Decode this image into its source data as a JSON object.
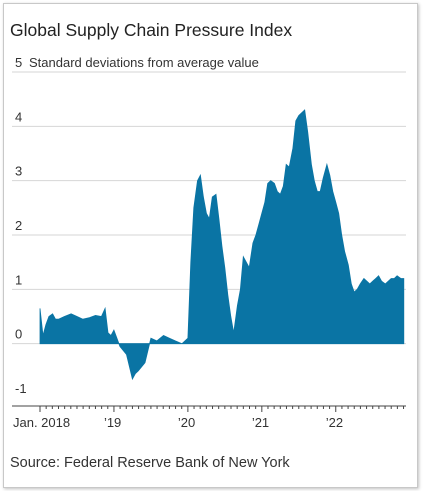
{
  "chart_data": {
    "type": "area",
    "title": "Global Supply Chain Pressure Index",
    "ylabel": "Standard deviations from average value",
    "ylim": [
      -1,
      5
    ],
    "y_ticks": [
      -1,
      0,
      1,
      2,
      3,
      4,
      5
    ],
    "x_tick_labels": [
      "Jan. 2018",
      "’19",
      "’20",
      "’21",
      "’22"
    ],
    "x_tick_years": [
      2018,
      2019,
      2020,
      2021,
      2022
    ],
    "xlim": [
      2018.0,
      2022.95
    ],
    "grid": "horizontal",
    "color": "#0a74a4",
    "source": "Source: Federal Reserve Bank of New York",
    "series": [
      {
        "x": [
          2018.0,
          2018.04,
          2018.08,
          2018.12,
          2018.17,
          2018.21,
          2018.25,
          2018.33,
          2018.42,
          2018.5,
          2018.58,
          2018.67,
          2018.75,
          2018.83,
          2018.88,
          2018.92,
          2018.96,
          2019.0,
          2019.04,
          2019.08,
          2019.17,
          2019.25,
          2019.29,
          2019.33,
          2019.42,
          2019.5,
          2019.58,
          2019.67,
          2019.75,
          2019.83,
          2019.92,
          2020.0,
          2020.04,
          2020.08,
          2020.13,
          2020.17,
          2020.21,
          2020.25,
          2020.29,
          2020.33,
          2020.38,
          2020.42,
          2020.46,
          2020.5,
          2020.54,
          2020.58,
          2020.62,
          2020.67,
          2020.71,
          2020.75,
          2020.79,
          2020.83,
          2020.88,
          2020.92,
          2020.96,
          2021.0,
          2021.04,
          2021.08,
          2021.12,
          2021.17,
          2021.21,
          2021.25,
          2021.29,
          2021.33,
          2021.37,
          2021.42,
          2021.46,
          2021.5,
          2021.54,
          2021.58,
          2021.62,
          2021.67,
          2021.71,
          2021.75,
          2021.79,
          2021.83,
          2021.88,
          2021.92,
          2021.96,
          2022.0,
          2022.04,
          2022.08,
          2022.12,
          2022.17,
          2022.21,
          2022.25,
          2022.29,
          2022.33,
          2022.38,
          2022.42,
          2022.46,
          2022.5,
          2022.54,
          2022.58,
          2022.62,
          2022.67,
          2022.71,
          2022.75,
          2022.79,
          2022.83,
          2022.88,
          2022.92
        ],
        "y": [
          0.65,
          0.15,
          0.35,
          0.5,
          0.55,
          0.45,
          0.45,
          0.5,
          0.55,
          0.5,
          0.45,
          0.48,
          0.52,
          0.5,
          0.65,
          0.2,
          0.15,
          0.25,
          0.1,
          -0.05,
          -0.2,
          -0.65,
          -0.55,
          -0.5,
          -0.35,
          0.1,
          0.05,
          0.15,
          0.1,
          0.05,
          0.0,
          0.1,
          1.5,
          2.5,
          3.0,
          3.1,
          2.7,
          2.4,
          2.3,
          2.7,
          2.75,
          2.3,
          1.8,
          1.4,
          0.9,
          0.5,
          0.2,
          0.7,
          1.0,
          1.6,
          1.5,
          1.4,
          1.85,
          2.0,
          2.2,
          2.4,
          2.6,
          2.95,
          3.0,
          2.95,
          2.8,
          2.75,
          2.9,
          3.3,
          3.25,
          3.6,
          4.1,
          4.2,
          4.25,
          4.3,
          3.9,
          3.3,
          3.0,
          2.8,
          2.8,
          3.05,
          3.3,
          3.1,
          2.8,
          2.6,
          2.4,
          2.0,
          1.7,
          1.45,
          1.1,
          0.95,
          1.0,
          1.1,
          1.2,
          1.15,
          1.1,
          1.15,
          1.2,
          1.25,
          1.15,
          1.1,
          1.15,
          1.2,
          1.2,
          1.25,
          1.2,
          1.2
        ]
      }
    ]
  }
}
